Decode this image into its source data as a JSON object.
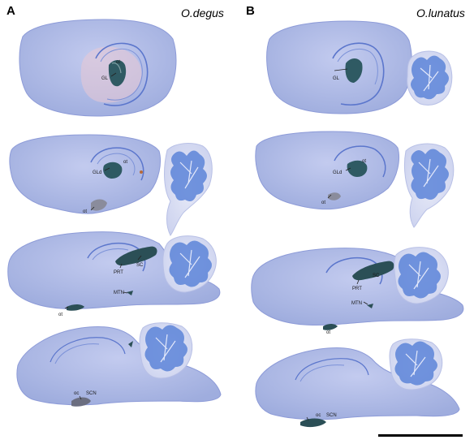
{
  "panels": {
    "a": {
      "letter": "A",
      "species": "O.degus"
    },
    "b": {
      "letter": "B",
      "species": "O.lunatus"
    }
  },
  "colors": {
    "tissue": "#a9b6e3",
    "tissue_light": "#c2cbef",
    "tissue_edge": "#7f8fd4",
    "cerebellum": "#5c84d8",
    "label_dark": "#2d4a50",
    "background": "#ffffff"
  },
  "labels": {
    "gl": "GL",
    "gld": "GLd",
    "ot": "ot",
    "prt": "PRT",
    "sc": "SC",
    "mtn": "MTN",
    "oc": "oc",
    "scn": "SCN"
  }
}
